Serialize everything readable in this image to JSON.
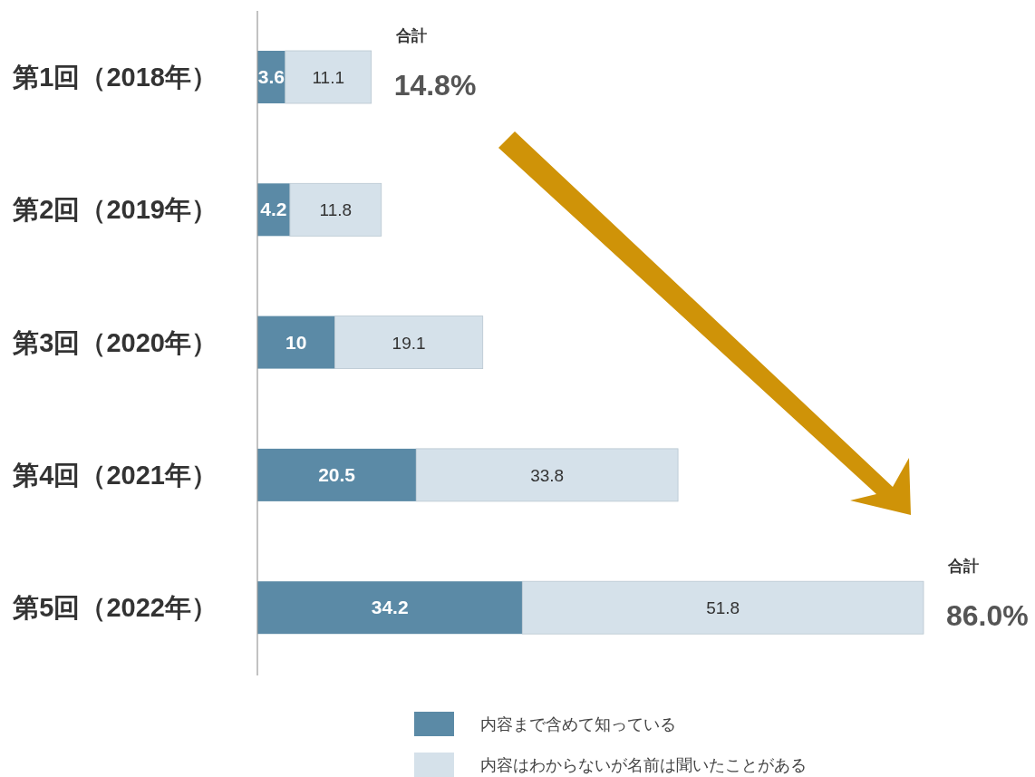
{
  "chart_data": {
    "type": "bar",
    "orientation": "horizontal",
    "stacked": true,
    "categories": [
      "第1回（2018年）",
      "第2回（2019年）",
      "第3回（2020年）",
      "第4回（2021年）",
      "第5回（2022年）"
    ],
    "series": [
      {
        "name": "内容まで含めて知っている",
        "color": "#5b8aa6",
        "values": [
          3.6,
          4.2,
          10,
          20.5,
          34.2
        ]
      },
      {
        "name": "内容はわからないが名前は聞いたことがある",
        "color": "#d5e1ea",
        "values": [
          11.1,
          11.8,
          19.1,
          33.8,
          51.8
        ]
      }
    ],
    "data_labels": true,
    "totals": [
      "合計 14.8%",
      null,
      null,
      null,
      "合計 86.0%"
    ],
    "legend": "bottom",
    "tick_labels": "y"
  }
}
